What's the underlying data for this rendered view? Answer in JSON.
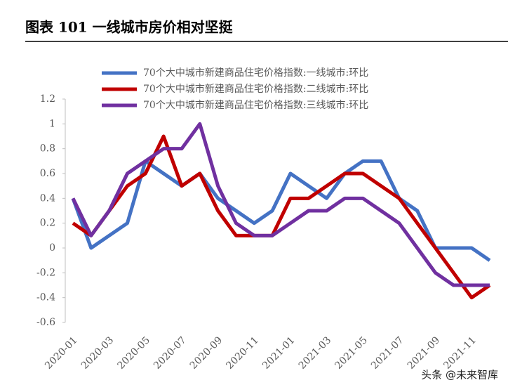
{
  "chart_data": {
    "type": "line",
    "title": "图表 101 一线城市房价相对坚挺",
    "watermark": "头条 @未来智库",
    "categories": [
      "2020-01",
      null,
      "2020-03",
      null,
      "2020-05",
      null,
      "2020-07",
      null,
      "2020-09",
      null,
      "2020-11",
      null,
      "2021-01",
      null,
      "2021-03",
      null,
      "2021-05",
      null,
      "2021-07",
      null,
      "2021-09",
      null,
      "2021-11",
      null
    ],
    "series": [
      {
        "name": "70个大中城市新建商品住宅价格指数:一线城市:环比",
        "color": "#4472c4",
        "values": [
          0.4,
          0,
          0.1,
          0.2,
          0.7,
          0.6,
          0.5,
          0.6,
          0.4,
          0.3,
          0.2,
          0.3,
          0.6,
          0.5,
          0.4,
          0.6,
          0.7,
          0.7,
          0.4,
          0.3,
          0,
          0,
          0,
          -0.1
        ]
      },
      {
        "name": "70个大中城市新建商品住宅价格指数:二线城市:环比",
        "color": "#c00000",
        "values": [
          0.2,
          0.1,
          0.3,
          0.5,
          0.6,
          0.9,
          0.5,
          0.6,
          0.3,
          0.1,
          0.1,
          0.1,
          0.4,
          0.4,
          0.5,
          0.6,
          0.6,
          0.5,
          0.4,
          0.2,
          0,
          -0.2,
          -0.4,
          -0.3
        ]
      },
      {
        "name": "70个大中城市新建商品住宅价格指数:三线城市:环比",
        "color": "#7030a0",
        "values": [
          0.4,
          0.1,
          0.3,
          0.6,
          0.7,
          0.8,
          0.8,
          1,
          0.5,
          0.2,
          0.1,
          0.1,
          0.2,
          0.3,
          0.3,
          0.4,
          0.4,
          0.3,
          0.2,
          0,
          -0.2,
          -0.3,
          -0.3,
          -0.3
        ]
      }
    ],
    "ylim": [
      -0.6,
      1.2
    ],
    "yticks": [
      -0.6,
      -0.4,
      -0.2,
      0,
      0.2,
      0.4,
      0.6,
      0.8,
      1,
      1.2
    ],
    "grid": false
  }
}
